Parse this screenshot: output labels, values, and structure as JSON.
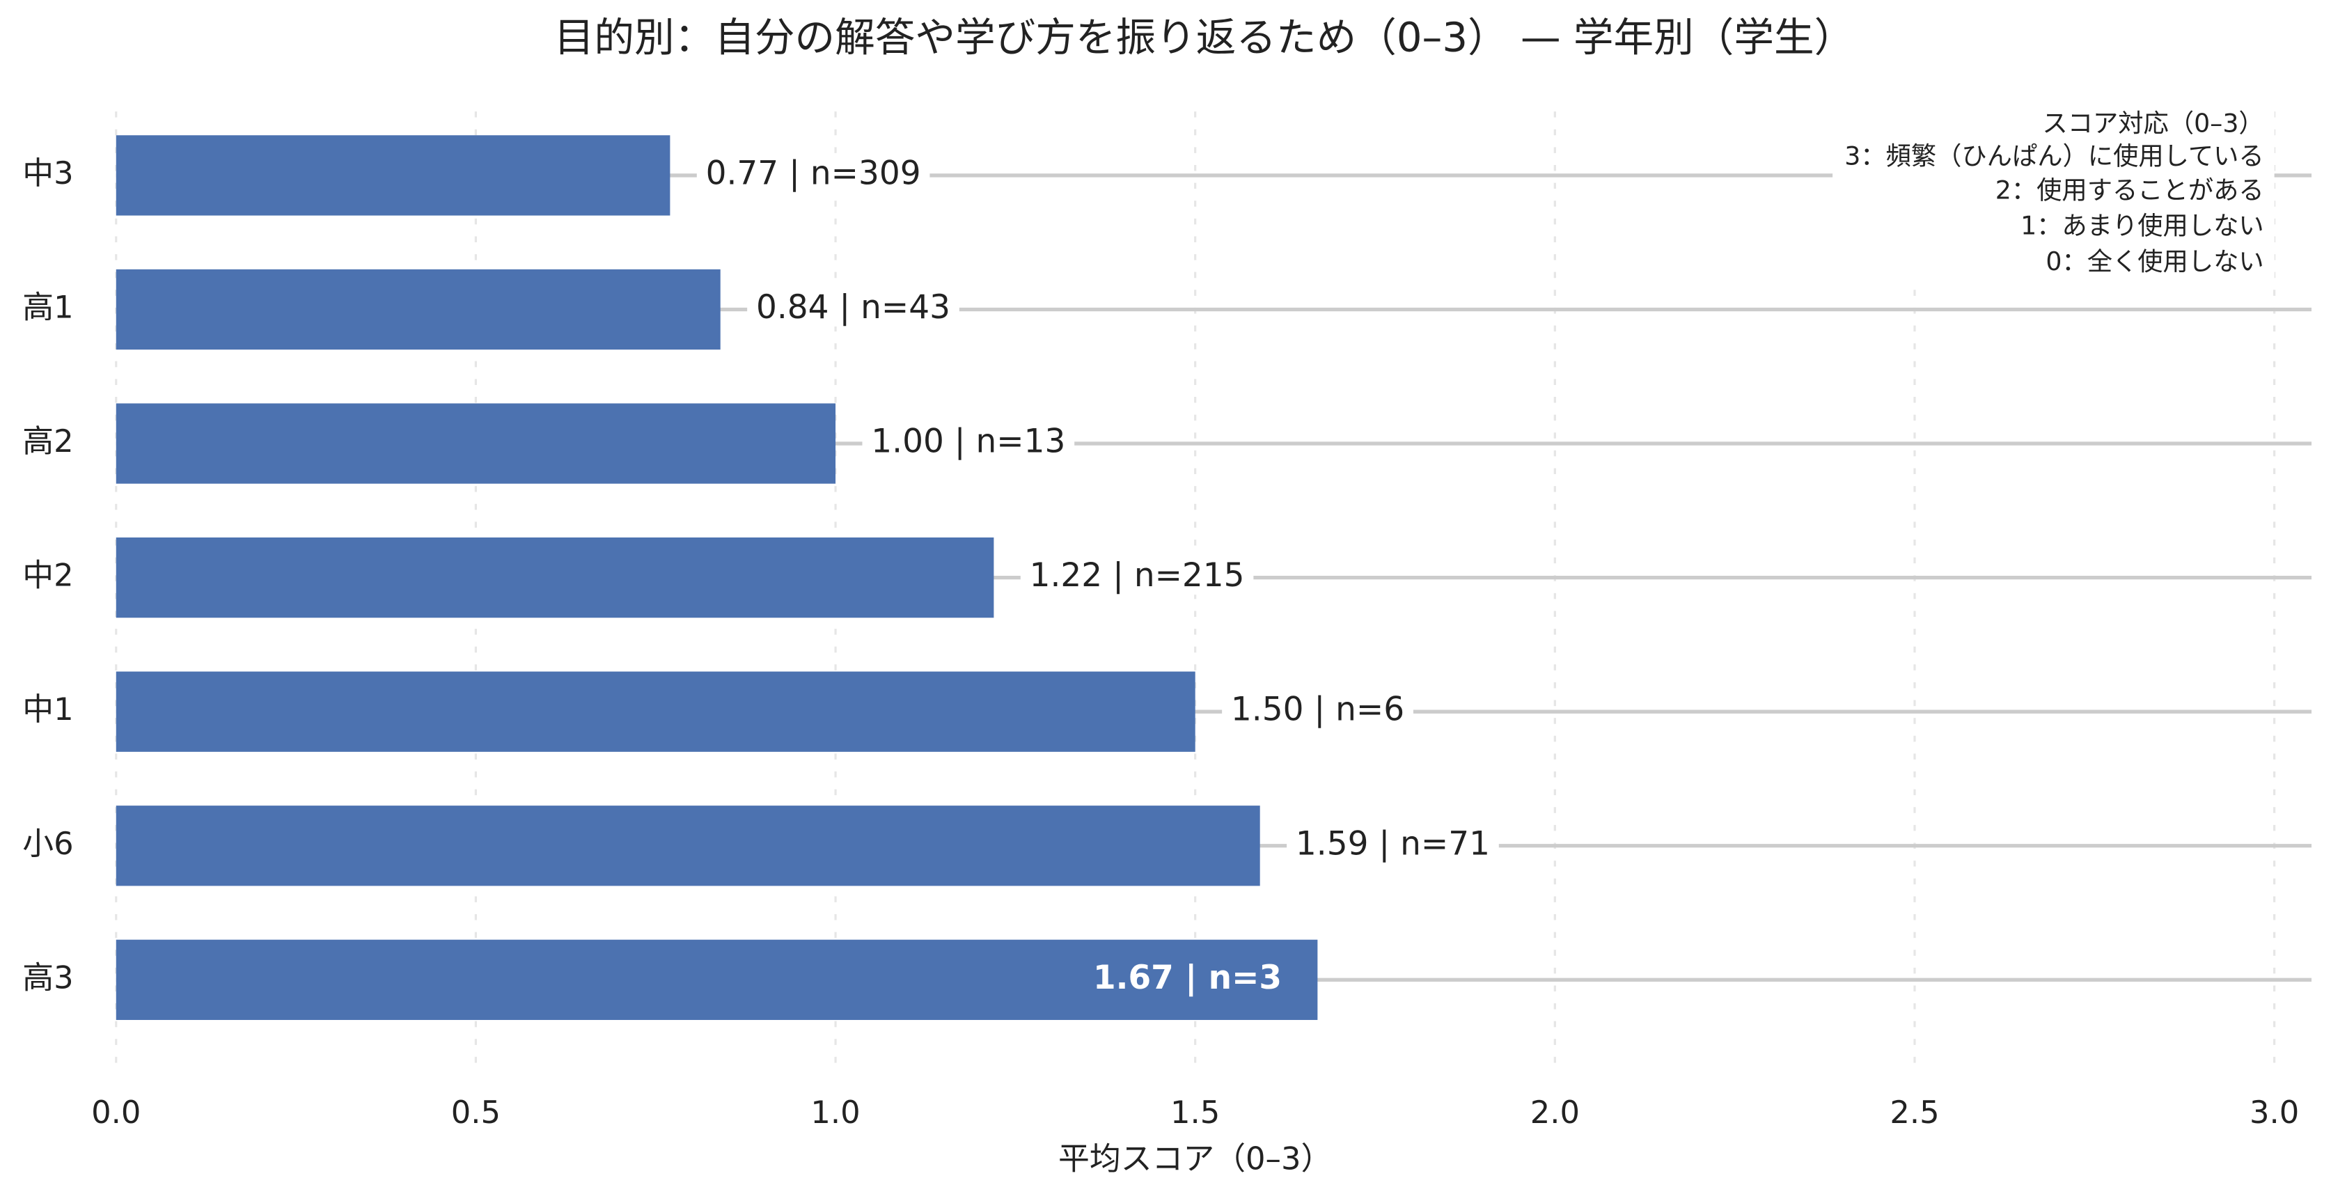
{
  "chart_data": {
    "type": "barh",
    "title": "目的別：自分の解答や学び方を振り返るため（0–3） — 学年別（学生）",
    "x_label": "平均スコア（0–3）",
    "categories": [
      "中3",
      "高1",
      "高2",
      "中2",
      "中1",
      "小6",
      "高3"
    ],
    "values": [
      0.77,
      0.84,
      1.0,
      1.22,
      1.5,
      1.59,
      1.67
    ],
    "value_labels": [
      "0.77 | n=309",
      "0.84 | n=43",
      "1.00 | n=13",
      "1.22 | n=215",
      "1.50 | n=6",
      "1.59 | n=71",
      "1.67 | n=3"
    ],
    "color": "#4c72b0",
    "xlim": [
      0,
      3.05
    ],
    "xticks": [
      {
        "value": 0,
        "label": "0.0"
      },
      {
        "value": 0.5,
        "label": "0.5"
      },
      {
        "value": 1,
        "label": "1.0"
      },
      {
        "value": 1.5,
        "label": "1.5"
      },
      {
        "value": 2,
        "label": "2.0"
      },
      {
        "value": 2.5,
        "label": "2.5"
      },
      {
        "value": 3,
        "label": "3.0"
      }
    ],
    "grid": true,
    "annotations": [
      "スコア対応（0–3）",
      "3：頻繁（ひんぱん）に使用している",
      "2：使用することがある",
      "1：あまり使用しない",
      "0：全く使用しない"
    ]
  }
}
